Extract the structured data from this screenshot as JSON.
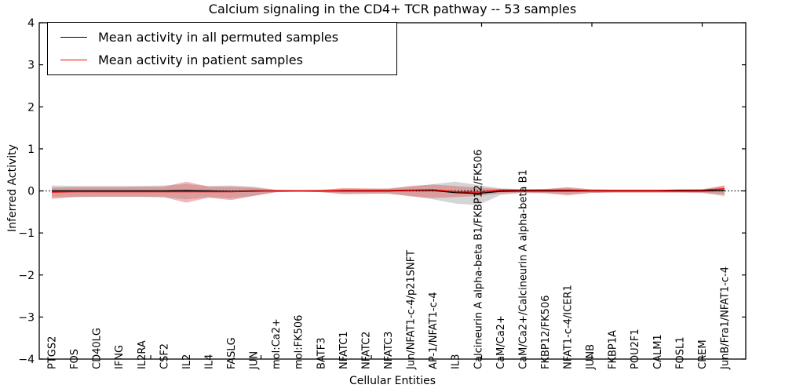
{
  "figure": {
    "title": "Calcium signaling in the CD4+ TCR pathway -- 53 samples",
    "xlabel": "Cellular Entities",
    "ylabel": "Inferred Activity"
  },
  "chart_data": {
    "type": "line",
    "title": "Calcium signaling in the CD4+ TCR pathway -- 53 samples",
    "xlabel": "Cellular Entities",
    "ylabel": "Inferred Activity",
    "ylim": [
      -4,
      4
    ],
    "yticks": [
      -4,
      -3,
      -2,
      -1,
      0,
      1,
      2,
      3,
      4
    ],
    "grid": false,
    "legend_position": "upper left",
    "zero_line": {
      "style": "dotted",
      "color": "#000000",
      "y": 0
    },
    "categories": [
      "PTGS2",
      "FOS",
      "CD40LG",
      "IFNG",
      "IL2RA",
      "CSF2",
      "IL2",
      "IL4",
      "FASLG",
      "JUN",
      "mol:Ca2+",
      "mol:FK506",
      "BATF3",
      "NFATC1",
      "NFATC2",
      "NFATC3",
      "Jun/NFAT1-c-4/p21SNFT",
      "AP-1/NFAT1-c-4",
      "IL3",
      "Calcineurin A alpha-beta B1/FKBP12/FK506",
      "CaM/Ca2+",
      "CaM/Ca2+/Calcineurin A alpha-beta B1",
      "FKBP12/FK506",
      "NFAT1-c-4/ICER1",
      "JUNB",
      "FKBP1A",
      "POU2F1",
      "CALM1",
      "FOSL1",
      "CREM",
      "JunB/Fra1/NFAT1-c-4"
    ],
    "series": [
      {
        "name": "Mean activity in all permuted samples",
        "color": "#000000",
        "band_color": "#888888",
        "band_opacity": 0.35,
        "values": [
          0,
          0,
          0,
          0,
          0,
          0,
          0.01,
          0,
          -0.01,
          0,
          0,
          0,
          0,
          0,
          0,
          0,
          0.01,
          0.01,
          -0.04,
          -0.06,
          -0.01,
          0,
          0,
          0,
          0,
          0,
          0,
          0,
          0,
          0,
          0.01
        ],
        "band_upper": [
          0.13,
          0.12,
          0.12,
          0.12,
          0.12,
          0.13,
          0.16,
          0.12,
          0.13,
          0.1,
          0.03,
          0.02,
          0.03,
          0.05,
          0.05,
          0.06,
          0.1,
          0.16,
          0.22,
          0.14,
          0.06,
          0.04,
          0.05,
          0.07,
          0.04,
          0.03,
          0.03,
          0.03,
          0.03,
          0.03,
          0.12
        ],
        "band_lower": [
          -0.15,
          -0.14,
          -0.14,
          -0.14,
          -0.14,
          -0.15,
          -0.2,
          -0.15,
          -0.18,
          -0.12,
          -0.03,
          -0.02,
          -0.03,
          -0.06,
          -0.06,
          -0.07,
          -0.12,
          -0.2,
          -0.3,
          -0.34,
          -0.1,
          -0.05,
          -0.06,
          -0.08,
          -0.05,
          -0.04,
          -0.04,
          -0.04,
          -0.04,
          -0.04,
          -0.13
        ]
      },
      {
        "name": "Mean activity in patient samples",
        "color": "#ff0000",
        "band_color": "#dd4444",
        "band_opacity": 0.38,
        "values": [
          -0.03,
          -0.02,
          -0.02,
          -0.02,
          -0.02,
          -0.02,
          -0.02,
          -0.02,
          -0.02,
          -0.01,
          0,
          0,
          0,
          0.01,
          0.01,
          0.01,
          0.02,
          0.03,
          -0.02,
          -0.03,
          0.02,
          0.02,
          0.02,
          0.02,
          0.01,
          0.01,
          0.01,
          0.01,
          0.02,
          0.02,
          0.05
        ],
        "band_upper": [
          0.08,
          0.09,
          0.09,
          0.09,
          0.1,
          0.1,
          0.22,
          0.1,
          0.1,
          0.08,
          0.02,
          0.01,
          0.02,
          0.07,
          0.06,
          0.05,
          0.12,
          0.15,
          0.12,
          0.08,
          0.05,
          0.03,
          0.04,
          0.09,
          0.04,
          0.03,
          0.03,
          0.03,
          0.03,
          0.04,
          0.13
        ],
        "band_lower": [
          -0.19,
          -0.15,
          -0.14,
          -0.14,
          -0.14,
          -0.15,
          -0.28,
          -0.16,
          -0.22,
          -0.12,
          -0.03,
          -0.01,
          -0.03,
          -0.08,
          -0.07,
          -0.06,
          -0.13,
          -0.17,
          -0.15,
          -0.12,
          -0.06,
          -0.04,
          -0.05,
          -0.11,
          -0.05,
          -0.04,
          -0.04,
          -0.04,
          -0.04,
          -0.05,
          -0.09
        ]
      }
    ]
  }
}
